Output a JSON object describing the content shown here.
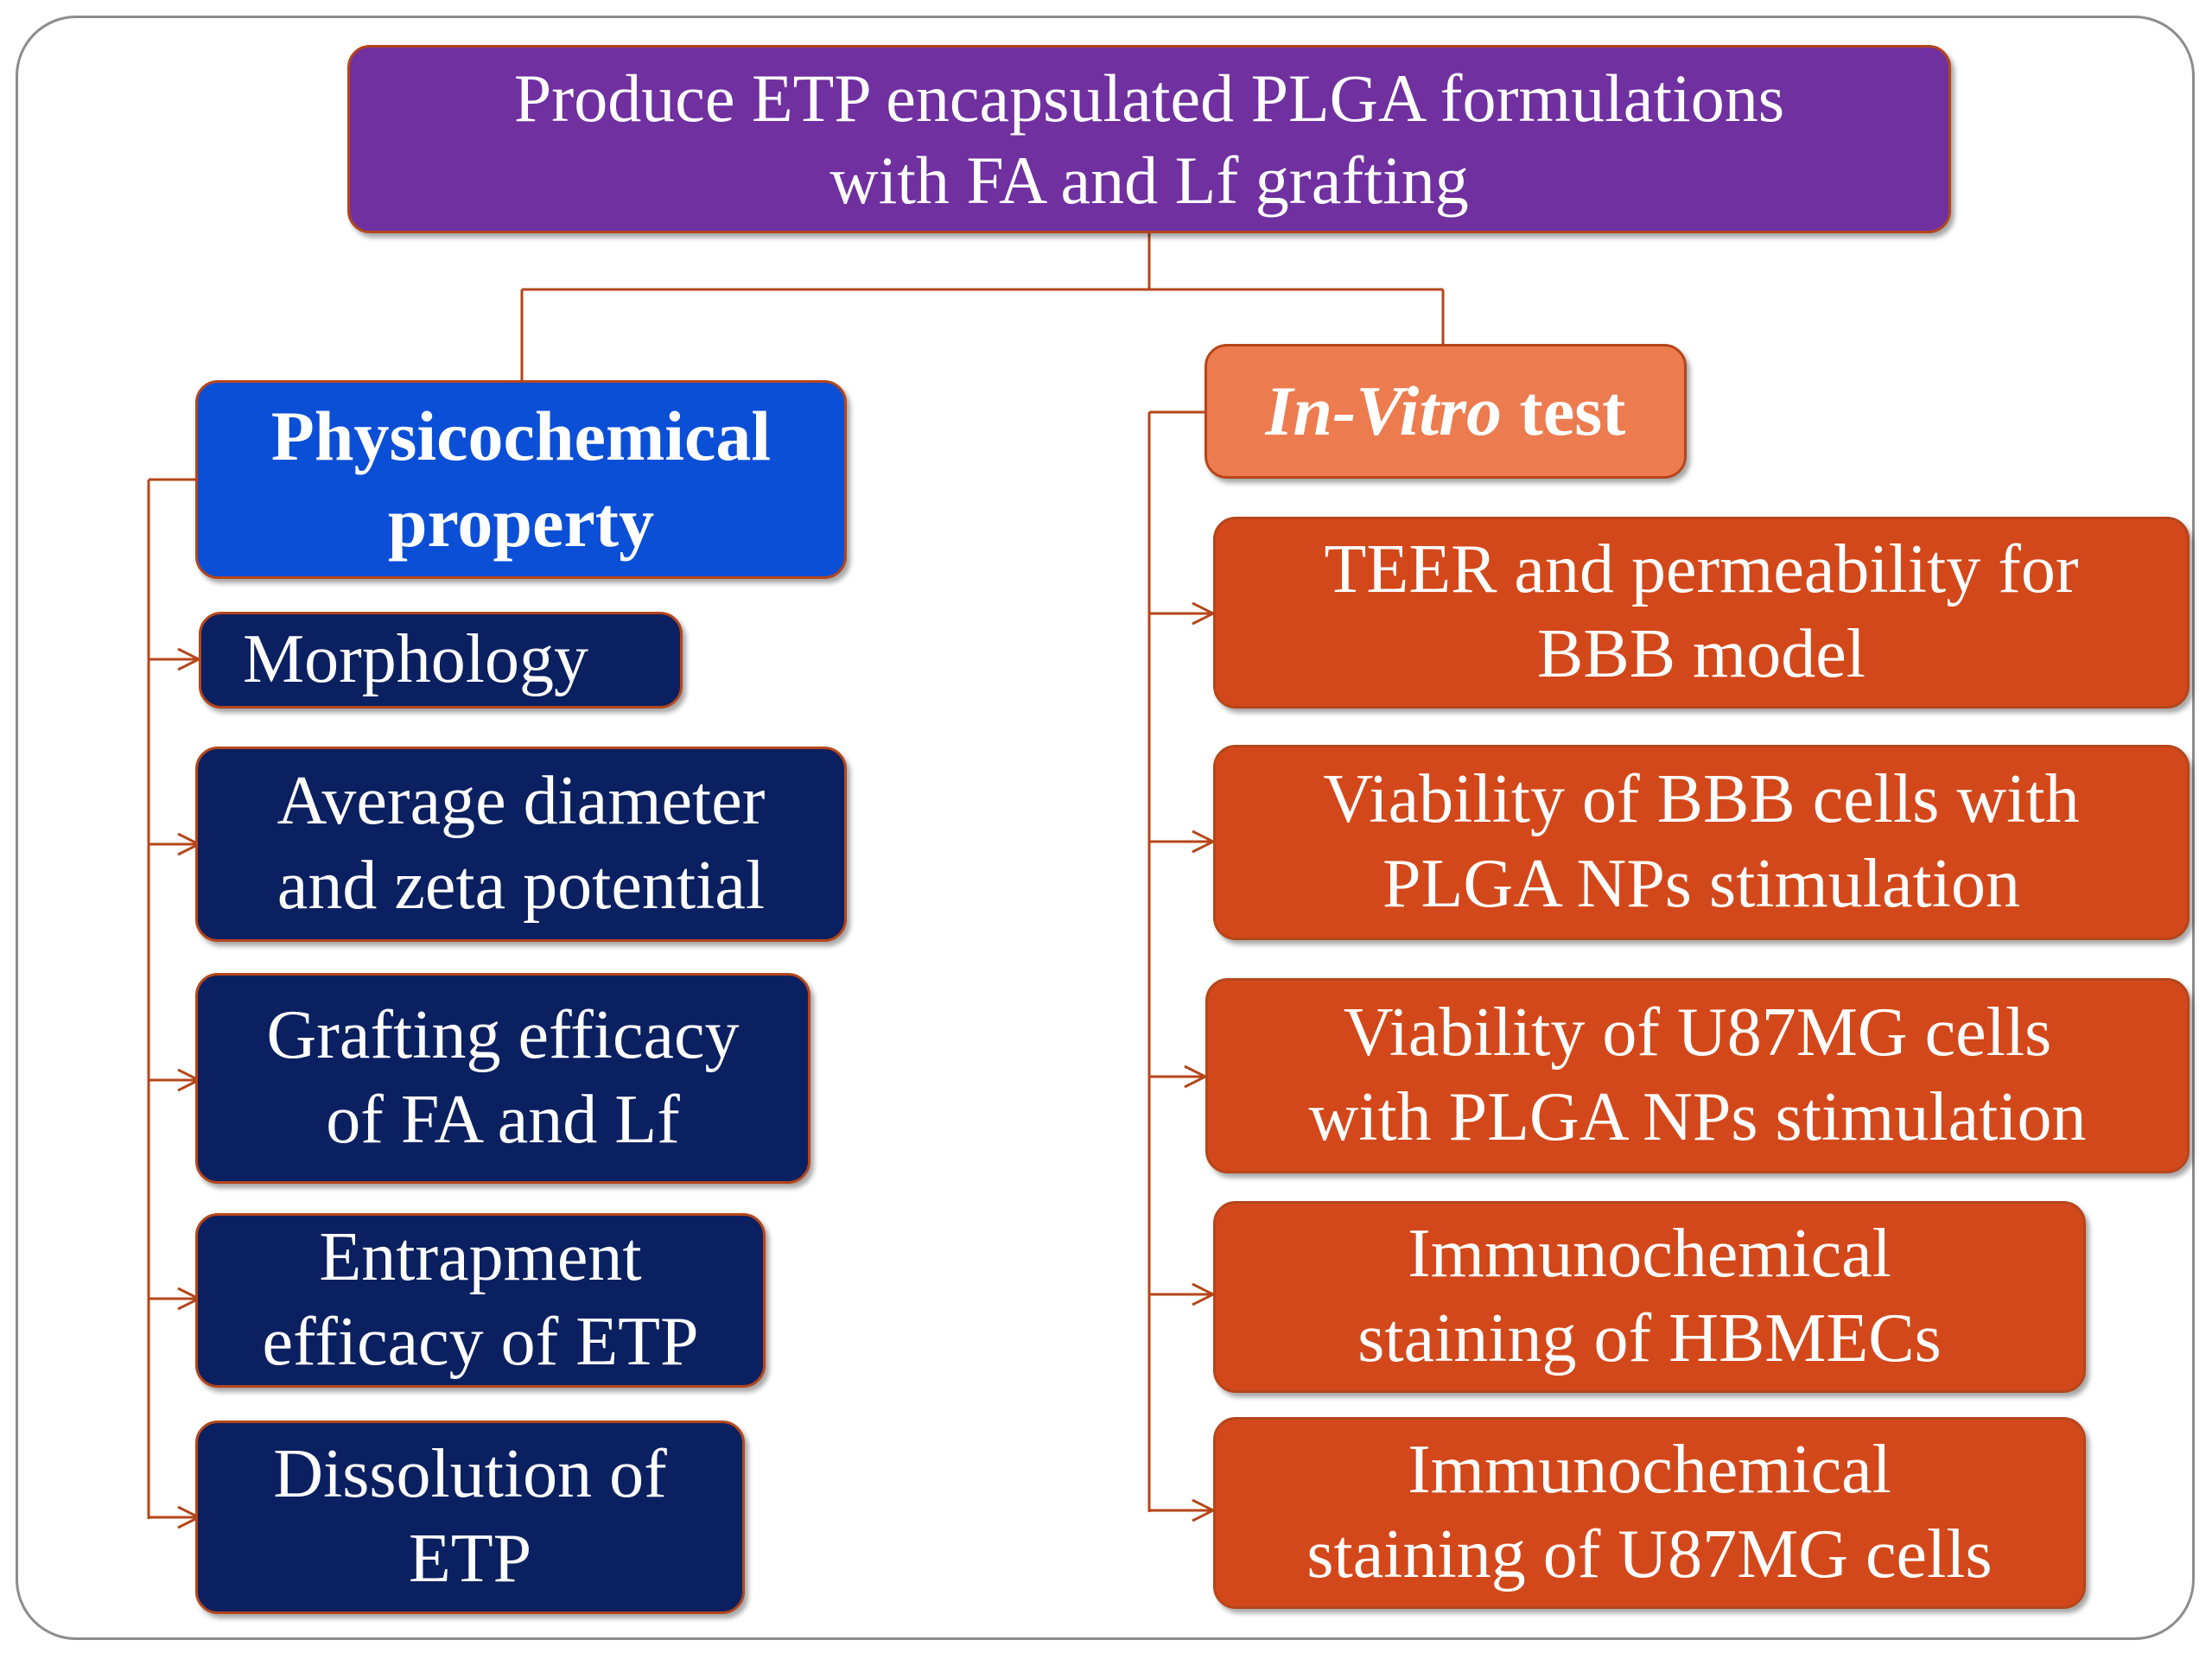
{
  "root": {
    "line1": "Produce ETP encapsulated PLGA formulations",
    "line2": "with FA and Lf grafting"
  },
  "left": {
    "header": {
      "line1": "Physicochemical",
      "line2": "property"
    },
    "items": [
      {
        "line1": "Morphology",
        "line2": ""
      },
      {
        "line1": "Average diameter",
        "line2": "and zeta potential"
      },
      {
        "line1": "Grafting efficacy",
        "line2": "of FA and Lf"
      },
      {
        "line1": "Entrapment",
        "line2": "efficacy of ETP"
      },
      {
        "line1": "Dissolution of",
        "line2": "ETP"
      }
    ]
  },
  "right": {
    "header": {
      "italic": "In-Vitro",
      "rest": " test"
    },
    "items": [
      {
        "line1": "TEER and permeability for",
        "line2": "BBB model"
      },
      {
        "line1": "Viability of BBB cells with",
        "line2": "PLGA NPs stimulation"
      },
      {
        "line1": "Viability of U87MG cells",
        "line2": "with PLGA NPs stimulation"
      },
      {
        "line1": "Immunochemical",
        "line2": "staining of HBMECs"
      },
      {
        "line1": "Immunochemical",
        "line2": "staining of U87MG cells"
      }
    ]
  },
  "colors": {
    "root": "#7030a0",
    "physicochemical": "#0b4fd6",
    "left_items": "#0b2060",
    "invitro": "#ec7c4f",
    "right_items": "#d3481a",
    "connector": "#b5461a"
  }
}
